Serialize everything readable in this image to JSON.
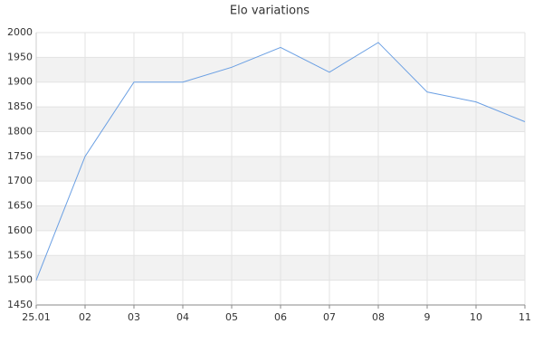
{
  "chart_data": {
    "type": "line",
    "title": "Elo variations",
    "categories": [
      "25.01",
      "02",
      "03",
      "04",
      "05",
      "06",
      "07",
      "08",
      "9",
      "10",
      "11"
    ],
    "values": [
      1500,
      1750,
      1900,
      1900,
      1930,
      1970,
      1920,
      1980,
      1880,
      1860,
      1820
    ],
    "color": "#6a9fe3",
    "ylim": [
      1450,
      2000
    ],
    "yticks": [
      1450,
      1500,
      1550,
      1600,
      1650,
      1700,
      1750,
      1800,
      1850,
      1900,
      1950,
      2000
    ],
    "grid": true
  }
}
